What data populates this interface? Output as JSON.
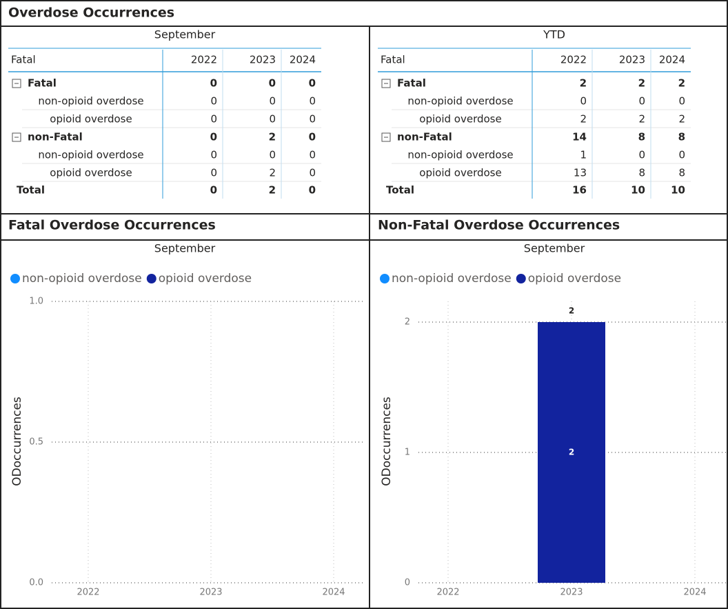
{
  "header": {
    "title": "Overdose Occurrences"
  },
  "tables": [
    {
      "caption": "September",
      "columns": [
        "Fatal",
        "2022",
        "2023",
        "2024"
      ],
      "groups": [
        {
          "label": "Fatal",
          "values": [
            0,
            0,
            0
          ],
          "rows": [
            {
              "label": "non-opioid overdose",
              "values": [
                0,
                0,
                0
              ]
            },
            {
              "label": "opioid overdose",
              "values": [
                0,
                0,
                0
              ]
            }
          ]
        },
        {
          "label": "non-Fatal",
          "values": [
            0,
            2,
            0
          ],
          "rows": [
            {
              "label": "non-opioid overdose",
              "values": [
                0,
                0,
                0
              ]
            },
            {
              "label": "opioid overdose",
              "values": [
                0,
                2,
                0
              ]
            }
          ]
        }
      ],
      "total": {
        "label": "Total",
        "values": [
          0,
          2,
          0
        ]
      }
    },
    {
      "caption": "YTD",
      "columns": [
        "Fatal",
        "2022",
        "2023",
        "2024"
      ],
      "groups": [
        {
          "label": "Fatal",
          "values": [
            2,
            2,
            2
          ],
          "rows": [
            {
              "label": "non-opioid overdose",
              "values": [
                0,
                0,
                0
              ]
            },
            {
              "label": "opioid overdose",
              "values": [
                2,
                2,
                2
              ]
            }
          ]
        },
        {
          "label": "non-Fatal",
          "values": [
            14,
            8,
            8
          ],
          "rows": [
            {
              "label": "non-opioid overdose",
              "values": [
                1,
                0,
                0
              ]
            },
            {
              "label": "opioid overdose",
              "values": [
                13,
                8,
                8
              ]
            }
          ]
        }
      ],
      "total": {
        "label": "Total",
        "values": [
          16,
          10,
          10
        ]
      }
    }
  ],
  "chart_data": [
    {
      "type": "bar",
      "heading": "Fatal Overdose Occurrences",
      "title": "September",
      "ylabel": "ODoccurrences",
      "categories": [
        "2022",
        "2023",
        "2024"
      ],
      "series": [
        {
          "name": "non-opioid overdose",
          "color": "#118dff",
          "values": [
            0,
            0,
            0
          ]
        },
        {
          "name": "opioid overdose",
          "color": "#12239e",
          "values": [
            0,
            0,
            0
          ]
        }
      ],
      "ylim": [
        0,
        1
      ],
      "yticks": [
        {
          "value": 0,
          "label": "0.0"
        },
        {
          "value": 0.5,
          "label": "0.5"
        },
        {
          "value": 1,
          "label": "1.0"
        }
      ],
      "grid": true
    },
    {
      "type": "bar",
      "heading": "Non-Fatal Overdose Occurrences",
      "title": "September",
      "ylabel": "ODoccurrences",
      "categories": [
        "2022",
        "2023",
        "2024"
      ],
      "series": [
        {
          "name": "non-opioid overdose",
          "color": "#118dff",
          "values": [
            0,
            0,
            0
          ]
        },
        {
          "name": "opioid overdose",
          "color": "#12239e",
          "values": [
            0,
            2,
            0
          ]
        }
      ],
      "totals": [
        null,
        2,
        null
      ],
      "ylim": [
        0,
        2
      ],
      "yticks": [
        0,
        1,
        2
      ],
      "grid": true
    }
  ]
}
